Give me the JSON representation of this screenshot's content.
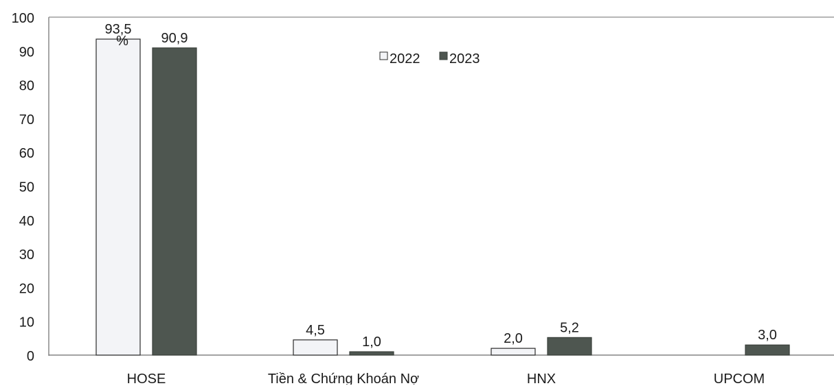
{
  "chart_data": {
    "type": "bar",
    "title": "",
    "xlabel": "",
    "ylabel": "",
    "unit_label": "%",
    "categories": [
      "HOSE",
      "Tiền & Chứng Khoán Nợ",
      "HNX",
      "UPCOM"
    ],
    "series": [
      {
        "name": "2022",
        "values": [
          93.5,
          4.5,
          2.0,
          null
        ],
        "labels": [
          "93,5",
          "4,5",
          "2,0",
          ""
        ],
        "color": "#f3f4f7"
      },
      {
        "name": "2023",
        "values": [
          90.9,
          1.0,
          5.2,
          3.0
        ],
        "labels": [
          "90,9",
          "1,0",
          "5,2",
          "3,0"
        ],
        "color": "#4e5650"
      }
    ],
    "ylim": [
      0,
      100
    ],
    "yticks": [
      0,
      10,
      20,
      30,
      40,
      50,
      60,
      70,
      80,
      90,
      100
    ],
    "grid": false,
    "legend_position": "top-center"
  }
}
